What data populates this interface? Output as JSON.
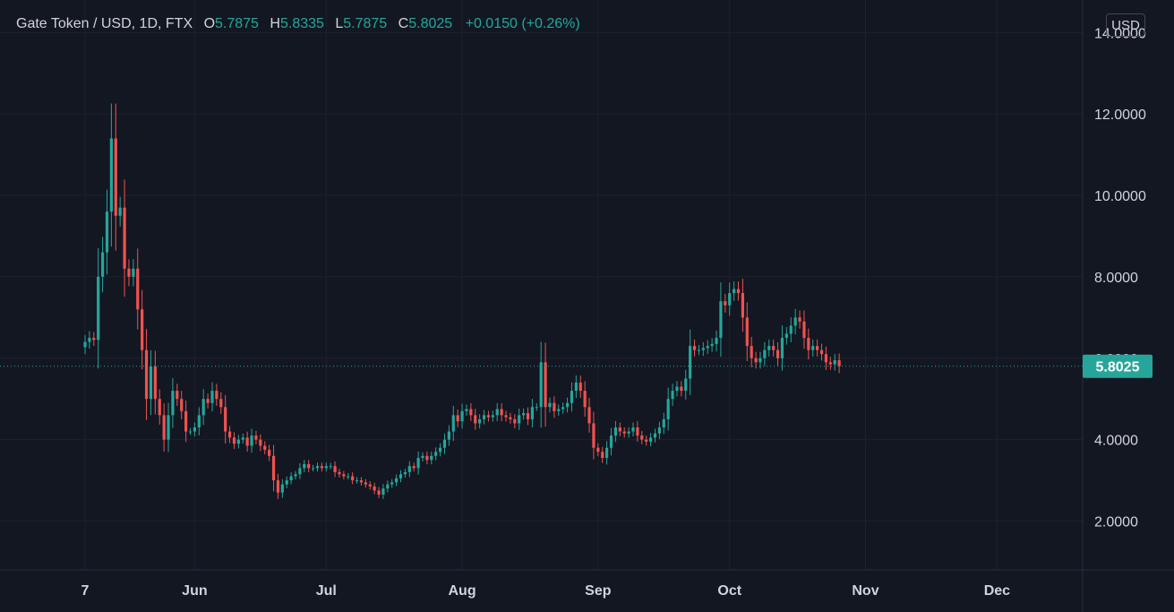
{
  "legend": {
    "symbol": "Gate Token / USD, 1D, FTX",
    "open_label": "O",
    "open": "5.7875",
    "high_label": "H",
    "high": "5.8335",
    "low_label": "L",
    "low": "5.7875",
    "close_label": "C",
    "close": "5.8025",
    "change": "+0.0150 (+0.26%)"
  },
  "currency_button": "USD",
  "last_price_label": "5.8025",
  "colors": {
    "background": "#131722",
    "grid": "#1e222d",
    "up": "#26a69a",
    "down": "#ef5350",
    "text": "#d1d4dc",
    "price_label_bg": "#26a69a"
  },
  "chart_data": {
    "type": "candlestick",
    "title": "Gate Token / USD, 1D, FTX",
    "ylim": [
      0.8,
      14.8
    ],
    "y_ticks": [
      "2.0000",
      "4.0000",
      "6.0000",
      "8.0000",
      "10.0000",
      "12.0000",
      "14.0000"
    ],
    "x_ticks": [
      "7",
      "Jun",
      "Jul",
      "Aug",
      "Sep",
      "Oct",
      "Nov",
      "Dec"
    ],
    "x_tick_dates": [
      "2022-05-07",
      "2022-06-01",
      "2022-07-01",
      "2022-08-01",
      "2022-09-01",
      "2022-10-01",
      "2022-11-01",
      "2022-12-01"
    ],
    "last_price": 5.8025,
    "closes": [
      6.4,
      6.5,
      6.45,
      8.0,
      8.6,
      9.6,
      11.4,
      9.5,
      9.7,
      8.2,
      8.0,
      8.2,
      7.2,
      6.2,
      5.0,
      5.8,
      5.0,
      4.6,
      4.0,
      4.6,
      5.2,
      5.0,
      4.7,
      4.2,
      4.2,
      4.3,
      4.6,
      5.0,
      4.9,
      5.2,
      5.0,
      4.8,
      4.2,
      4.05,
      3.9,
      4.0,
      4.05,
      3.85,
      4.1,
      4.0,
      3.85,
      3.75,
      3.6,
      3.0,
      2.7,
      2.9,
      3.0,
      3.1,
      3.15,
      3.3,
      3.4,
      3.3,
      3.3,
      3.35,
      3.3,
      3.35,
      3.35,
      3.2,
      3.15,
      3.1,
      3.1,
      3.0,
      3.0,
      2.95,
      2.9,
      2.85,
      2.75,
      2.65,
      2.8,
      2.9,
      2.95,
      3.05,
      3.15,
      3.2,
      3.35,
      3.3,
      3.55,
      3.6,
      3.5,
      3.6,
      3.7,
      3.8,
      4.0,
      4.2,
      4.6,
      4.45,
      4.7,
      4.75,
      4.6,
      4.4,
      4.5,
      4.6,
      4.55,
      4.6,
      4.75,
      4.6,
      4.55,
      4.5,
      4.4,
      4.6,
      4.65,
      4.5,
      4.8,
      4.8,
      5.9,
      4.8,
      4.9,
      4.7,
      4.75,
      4.8,
      4.9,
      5.2,
      5.4,
      5.2,
      4.8,
      4.4,
      3.8,
      3.7,
      3.55,
      3.8,
      4.1,
      4.3,
      4.2,
      4.15,
      4.2,
      4.3,
      4.1,
      4.0,
      3.95,
      4.05,
      4.15,
      4.3,
      4.5,
      5.0,
      5.2,
      5.3,
      5.2,
      5.5,
      6.3,
      6.2,
      6.2,
      6.25,
      6.3,
      6.35,
      6.5,
      7.4,
      7.3,
      7.6,
      7.7,
      7.6,
      7.0,
      6.3,
      6.0,
      5.9,
      6.0,
      6.2,
      6.3,
      6.2,
      6.0,
      6.5,
      6.6,
      6.8,
      7.0,
      6.9,
      6.5,
      6.2,
      6.3,
      6.2,
      6.1,
      5.9,
      5.85,
      5.95,
      5.8025
    ]
  }
}
